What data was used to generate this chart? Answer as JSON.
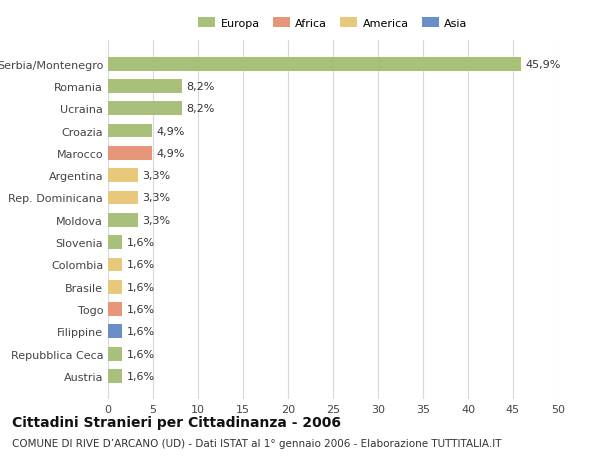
{
  "countries": [
    "Austria",
    "Repubblica Ceca",
    "Filippine",
    "Togo",
    "Brasile",
    "Colombia",
    "Slovenia",
    "Moldova",
    "Rep. Dominicana",
    "Argentina",
    "Marocco",
    "Croazia",
    "Ucraina",
    "Romania",
    "Serbia/Montenegro"
  ],
  "values": [
    1.6,
    1.6,
    1.6,
    1.6,
    1.6,
    1.6,
    1.6,
    3.3,
    3.3,
    3.3,
    4.9,
    4.9,
    8.2,
    8.2,
    45.9
  ],
  "labels": [
    "1,6%",
    "1,6%",
    "1,6%",
    "1,6%",
    "1,6%",
    "1,6%",
    "1,6%",
    "3,3%",
    "3,3%",
    "3,3%",
    "4,9%",
    "4,9%",
    "8,2%",
    "8,2%",
    "45,9%"
  ],
  "continents": [
    "Europa",
    "Europa",
    "Asia",
    "Africa",
    "America",
    "America",
    "Europa",
    "Europa",
    "America",
    "America",
    "Africa",
    "Europa",
    "Europa",
    "Europa",
    "Europa"
  ],
  "continent_colors": {
    "Europa": "#a8c07a",
    "Africa": "#e8967a",
    "America": "#e8c87a",
    "Asia": "#6a8fc8"
  },
  "legend_order": [
    "Europa",
    "Africa",
    "America",
    "Asia"
  ],
  "legend_colors": [
    "#a8c07a",
    "#e8967a",
    "#e8c87a",
    "#6a8fc8"
  ],
  "title": "Cittadini Stranieri per Cittadinanza - 2006",
  "subtitle": "COMUNE DI RIVE D’ARCANO (UD) - Dati ISTAT al 1° gennaio 2006 - Elaborazione TUTTITALIA.IT",
  "xlim": [
    0,
    50
  ],
  "xticks": [
    0,
    5,
    10,
    15,
    20,
    25,
    30,
    35,
    40,
    45,
    50
  ],
  "background_color": "#ffffff",
  "grid_color": "#d8d8d8",
  "bar_height": 0.62,
  "label_fontsize": 8.0,
  "tick_fontsize": 8.0,
  "title_fontsize": 10,
  "subtitle_fontsize": 7.5
}
